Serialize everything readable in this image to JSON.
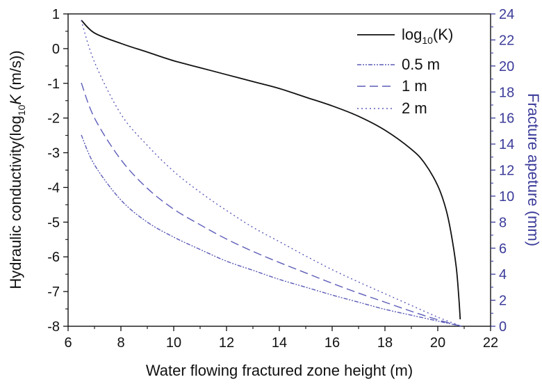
{
  "chart_data": {
    "type": "line",
    "title": "",
    "xlabel": "Water flowing fractured zone height (m)",
    "ylabel_left": {
      "pre": "Hydraulic conductivity(log",
      "sub": "10",
      "italic": "K",
      "post": " (m/s))"
    },
    "ylabel_right": "Fracture apeture (mm)",
    "xlim": [
      6,
      22
    ],
    "ylim_left": [
      -8,
      1
    ],
    "ylim_right": [
      0,
      24
    ],
    "x_ticks": [
      "6",
      "8",
      "10",
      "12",
      "14",
      "16",
      "18",
      "20",
      "22"
    ],
    "y_left_ticks": [
      "1",
      "0",
      "-1",
      "-2",
      "-3",
      "-4",
      "-5",
      "-6",
      "-7",
      "-8"
    ],
    "y_right_ticks": [
      "24",
      "22",
      "20",
      "18",
      "16",
      "14",
      "12",
      "10",
      "8",
      "6",
      "4",
      "2",
      "0"
    ],
    "legend": {
      "placement": "top-right",
      "items": [
        {
          "pre": "log",
          "sub": "10",
          "post": "(K)"
        },
        {
          "label": "0.5 m"
        },
        {
          "label": "1 m"
        },
        {
          "label": "2 m"
        }
      ]
    },
    "series": [
      {
        "key": "logK",
        "axis": "left",
        "color": "#111111",
        "dash": "",
        "x": [
          6.5,
          7,
          8,
          9,
          10,
          11,
          12,
          13,
          14,
          15,
          16,
          17,
          18,
          19,
          19.5,
          20,
          20.3,
          20.5,
          20.7,
          20.8,
          20.85
        ],
        "y": [
          0.82,
          0.45,
          0.15,
          -0.1,
          -0.35,
          -0.55,
          -0.75,
          -0.95,
          -1.15,
          -1.4,
          -1.65,
          -1.95,
          -2.35,
          -2.9,
          -3.3,
          -3.95,
          -4.6,
          -5.3,
          -6.3,
          -7.2,
          -7.8
        ]
      },
      {
        "key": "0.5 m",
        "axis": "right",
        "color": "#5b5bb8",
        "dash": "6 2 2 2 2 2",
        "x": [
          6.5,
          7,
          8,
          9,
          10,
          11,
          12,
          13,
          14,
          15,
          16,
          17,
          18,
          19,
          20,
          20.9
        ],
        "y": [
          14.7,
          12.4,
          9.7,
          8.0,
          6.85,
          5.9,
          5.0,
          4.3,
          3.6,
          3.0,
          2.4,
          1.85,
          1.3,
          0.85,
          0.4,
          0
        ]
      },
      {
        "key": "1 m",
        "axis": "right",
        "color": "#5b5bb8",
        "dash": "12 6",
        "x": [
          6.5,
          7,
          8,
          9,
          10,
          11,
          12,
          13,
          14,
          15,
          16,
          17,
          18,
          19,
          20,
          20.9
        ],
        "y": [
          18.7,
          16.0,
          12.8,
          10.6,
          9.0,
          7.8,
          6.7,
          5.75,
          4.9,
          4.1,
          3.3,
          2.55,
          1.85,
          1.15,
          0.5,
          0
        ]
      },
      {
        "key": "2 m",
        "axis": "right",
        "color": "#5b5bb8",
        "dash": "2 4",
        "x": [
          6.5,
          7,
          8,
          9,
          10,
          11,
          12,
          13,
          14,
          15,
          16,
          17,
          18,
          19,
          20,
          20.9
        ],
        "y": [
          23.5,
          20.3,
          16.3,
          13.9,
          11.9,
          10.3,
          8.9,
          7.6,
          6.5,
          5.4,
          4.35,
          3.4,
          2.5,
          1.6,
          0.7,
          0
        ]
      }
    ]
  }
}
